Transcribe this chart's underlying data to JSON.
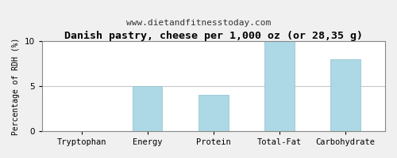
{
  "title": "Danish pastry, cheese per 1,000 oz (or 28,35 g)",
  "subtitle": "www.dietandfitnesstoday.com",
  "categories": [
    "Tryptophan",
    "Energy",
    "Protein",
    "Total-Fat",
    "Carbohydrate"
  ],
  "values": [
    0,
    5,
    4,
    10,
    8
  ],
  "bar_color": "#add8e6",
  "ylabel": "Percentage of RDH (%)",
  "ylim": [
    0,
    10
  ],
  "yticks": [
    0,
    5,
    10
  ],
  "background_color": "#f0f0f0",
  "plot_bg_color": "#ffffff",
  "title_fontsize": 9.5,
  "title_fontweight": "bold",
  "subtitle_fontsize": 8,
  "ylabel_fontsize": 7,
  "tick_fontsize": 7.5,
  "grid_color": "#c8c8c8",
  "spine_color": "#888888",
  "border_color": "#888888"
}
